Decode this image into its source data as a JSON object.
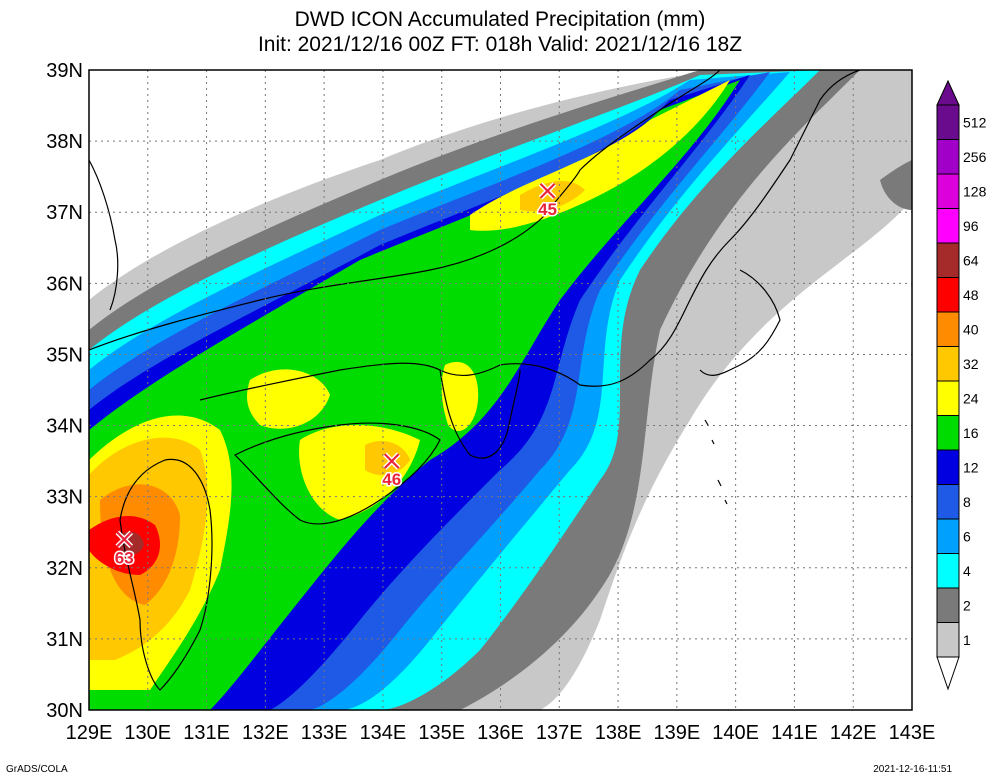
{
  "title": {
    "line1": "DWD ICON Accumulated Precipitation (mm)",
    "line2": "Init: 2021/12/16 00Z  FT: 018h  Valid: 2021/12/16 18Z"
  },
  "axes": {
    "lat_labels": [
      "39N",
      "38N",
      "37N",
      "36N",
      "35N",
      "34N",
      "33N",
      "32N",
      "31N",
      "30N"
    ],
    "lon_labels": [
      "129E",
      "130E",
      "131E",
      "132E",
      "133E",
      "134E",
      "135E",
      "136E",
      "137E",
      "138E",
      "139E",
      "140E",
      "141E",
      "142E",
      "143E"
    ]
  },
  "colorbar": {
    "levels": [
      "512",
      "256",
      "128",
      "96",
      "64",
      "48",
      "40",
      "32",
      "24",
      "16",
      "12",
      "8",
      "6",
      "4",
      "2",
      "1"
    ],
    "colors": [
      "#6a0a8c",
      "#a000c8",
      "#dc00dc",
      "#ff00ff",
      "#a52a2a",
      "#ff0000",
      "#ff8c00",
      "#ffc800",
      "#ffff00",
      "#00dc00",
      "#0000e0",
      "#1e5ae6",
      "#00a0ff",
      "#00ffff",
      "#7a7a7a",
      "#c8c8c8"
    ]
  },
  "markers": [
    {
      "name": "kyushu-max",
      "value": "63",
      "lon": 129.6,
      "lat": 32.4
    },
    {
      "name": "shikoku-max",
      "value": "46",
      "lon": 134.15,
      "lat": 33.5
    },
    {
      "name": "noto-max",
      "value": "45",
      "lon": 136.8,
      "lat": 37.3
    }
  ],
  "footer": {
    "left": "GrADS/COLA",
    "right": "2021-12-16-11:51"
  }
}
